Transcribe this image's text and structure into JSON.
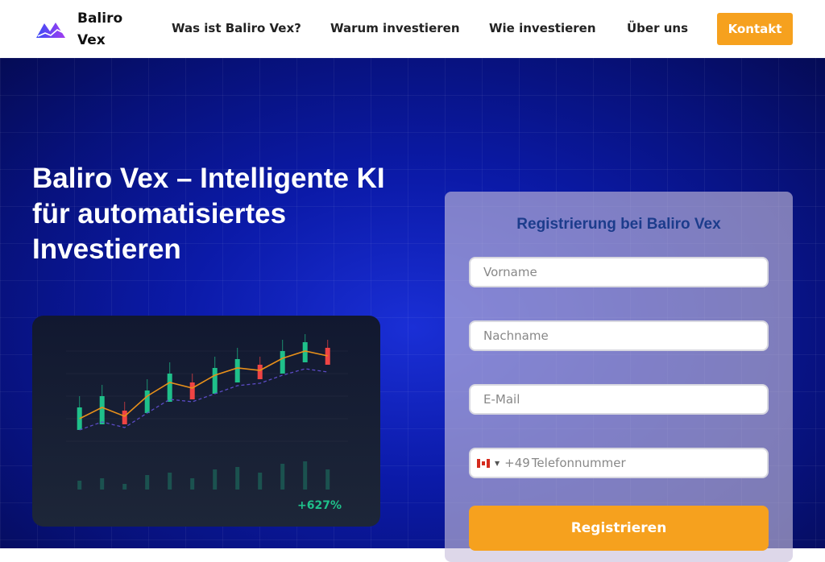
{
  "header": {
    "brand": "Baliro Vex",
    "nav": [
      "Was ist Baliro Vex?",
      "Warum investieren",
      "Wie investieren",
      "Über uns"
    ],
    "contact": "Kontakt"
  },
  "hero": {
    "title": "Baliro Vex – Intelligente KI für automatisiertes Investieren",
    "gain": "+627%"
  },
  "form": {
    "title": "Registrierung bei Baliro Vex",
    "first_name": "Vorname",
    "last_name": "Nachname",
    "email": "E-Mail",
    "phone_code": "+49",
    "phone": "Telefonnummer",
    "country_flag": "canada-flag-icon",
    "submit": "Registrieren"
  },
  "colors": {
    "accent": "#f6a11e",
    "up": "#1fc08a",
    "down": "#ef4444",
    "heading": "#1c3c8c"
  }
}
